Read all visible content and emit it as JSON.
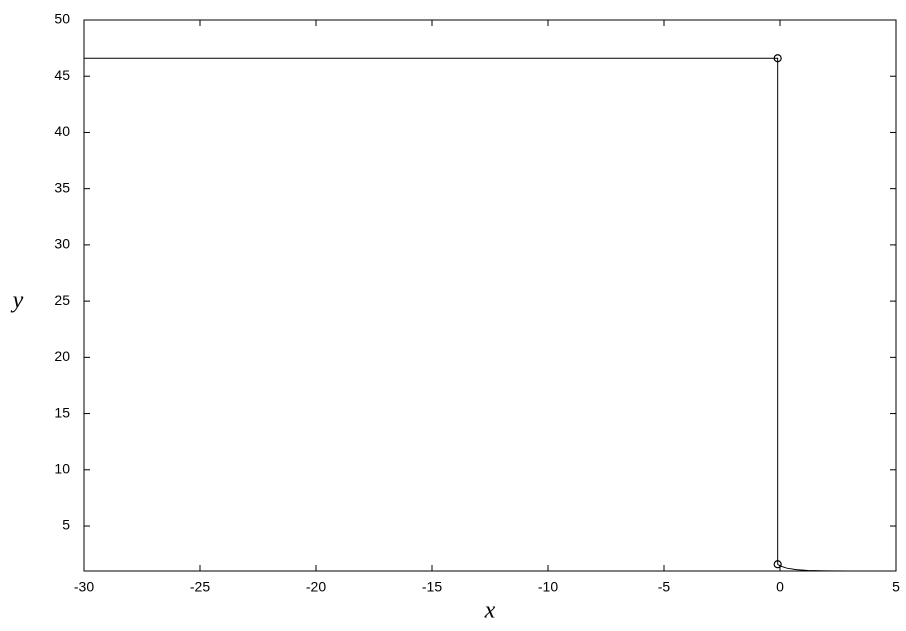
{
  "chart_data": {
    "type": "line",
    "xlabel": "x",
    "ylabel": "y",
    "xlim": [
      -30,
      5
    ],
    "ylim": [
      1,
      50
    ],
    "xticks": [
      -30,
      -25,
      -20,
      -15,
      -10,
      -5,
      0,
      5
    ],
    "yticks": [
      5,
      10,
      15,
      20,
      25,
      30,
      35,
      40,
      45,
      50
    ],
    "series": [
      {
        "color": "#000000",
        "marker": "none",
        "x": [
          -30,
          -0.1,
          -0.1,
          0,
          0.3,
          0.7,
          1.2,
          2,
          3,
          5
        ],
        "values": [
          46.6,
          46.6,
          1.6,
          1.45,
          1.25,
          1.12,
          1.05,
          1.01,
          1.0,
          1.0
        ]
      },
      {
        "color": "#000000",
        "marker": "circle",
        "x": [
          -0.1,
          -0.1
        ],
        "values": [
          46.6,
          1.6
        ]
      }
    ]
  }
}
